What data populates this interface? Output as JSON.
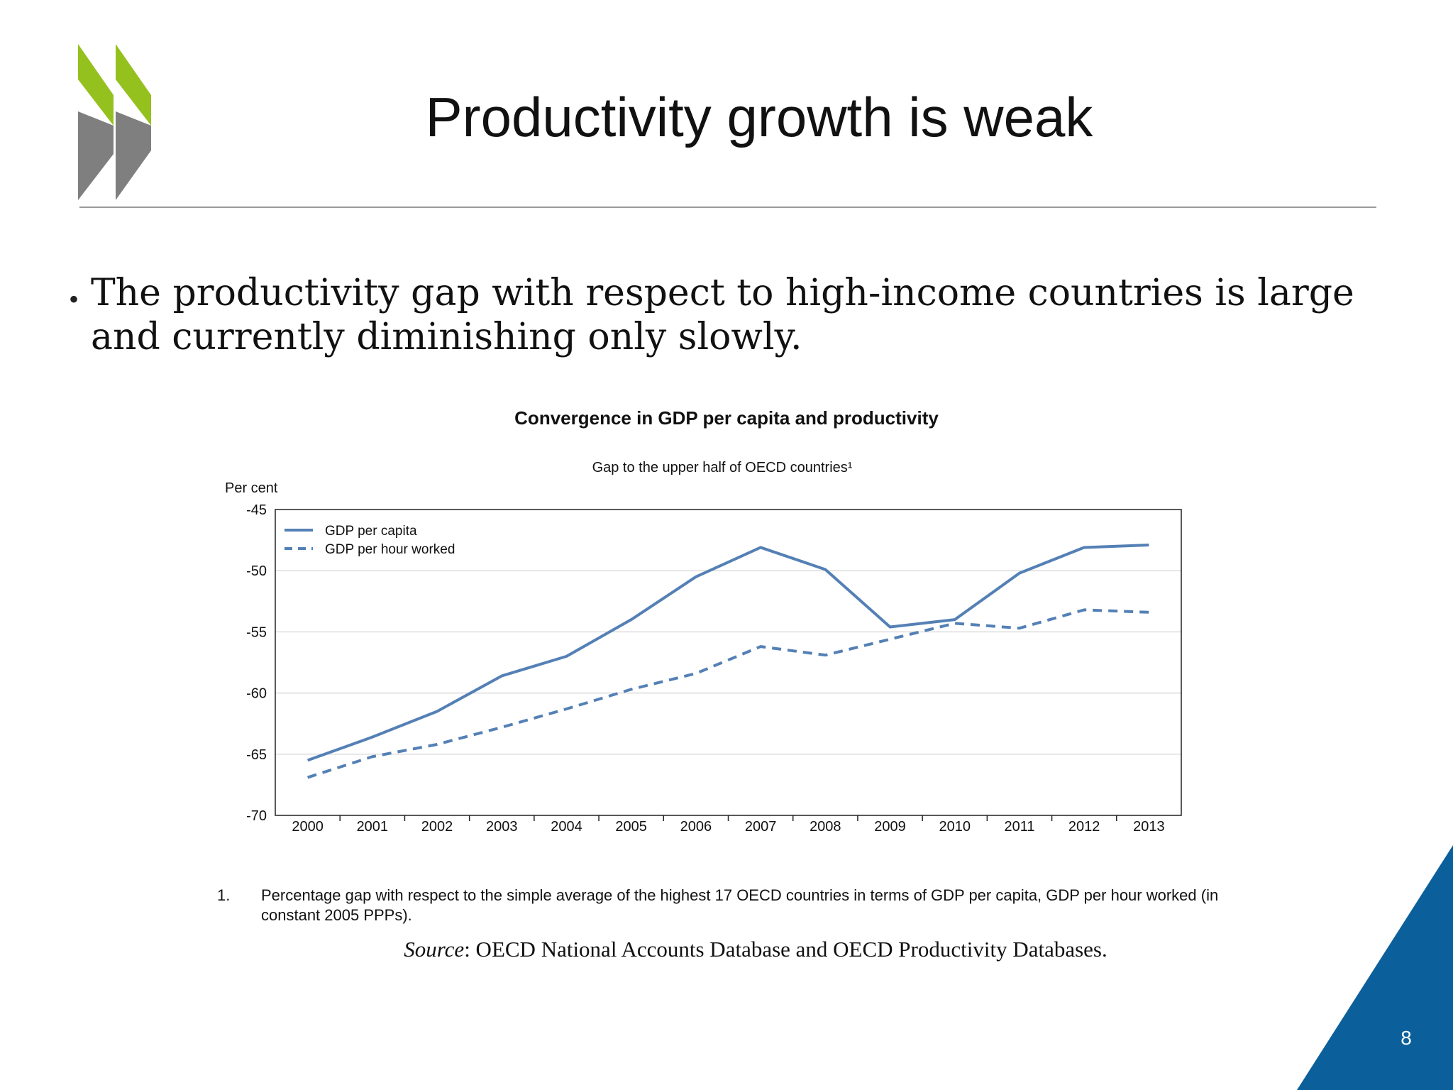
{
  "slide": {
    "title": "Productivity growth is weak",
    "bullet": "The productivity gap with respect to high-income countries is large and currently diminishing only slowly.",
    "page_number": "8",
    "colors": {
      "accent_green": "#95c11f",
      "accent_gray": "#7f7f7f",
      "corner_blue": "#0b5f9b",
      "series": "#5480b5"
    },
    "logo": "oecd-logo-icon"
  },
  "chart_data": {
    "type": "line",
    "title": "Convergence in GDP per capita and productivity",
    "subtitle": "Gap to the upper half of OECD countries¹",
    "ylabel": "Per cent",
    "xlabel": "",
    "ylim": [
      -70,
      -45
    ],
    "yticks": [
      -45,
      -50,
      -55,
      -60,
      -65,
      -70
    ],
    "x": [
      "2000",
      "2001",
      "2002",
      "2003",
      "2004",
      "2005",
      "2006",
      "2007",
      "2008",
      "2009",
      "2010",
      "2011",
      "2012",
      "2013"
    ],
    "grid": true,
    "legend_position": "top-left",
    "series": [
      {
        "name": "GDP per capita",
        "style": "solid",
        "color": "#5480b5",
        "values": [
          -65.5,
          -63.6,
          -61.5,
          -58.6,
          -57.0,
          -54.0,
          -50.5,
          -48.1,
          -49.9,
          -54.6,
          -54.0,
          -50.2,
          -48.1,
          -47.9
        ]
      },
      {
        "name": "GDP per hour worked",
        "style": "dashed",
        "color": "#5480b5",
        "values": [
          -66.9,
          -65.2,
          -64.2,
          -62.8,
          -61.3,
          -59.7,
          -58.4,
          -56.2,
          -56.9,
          -55.6,
          -54.3,
          -54.7,
          -53.2,
          -53.4
        ]
      }
    ]
  },
  "notes": {
    "footnote_number": "1.",
    "footnote_text": "Percentage gap with respect to the simple average of the highest 17 OECD countries in terms of GDP per capita, GDP per hour worked (in constant 2005 PPPs).",
    "source_label": "Source",
    "source_text": ": OECD National Accounts Database and OECD Productivity Databases."
  }
}
